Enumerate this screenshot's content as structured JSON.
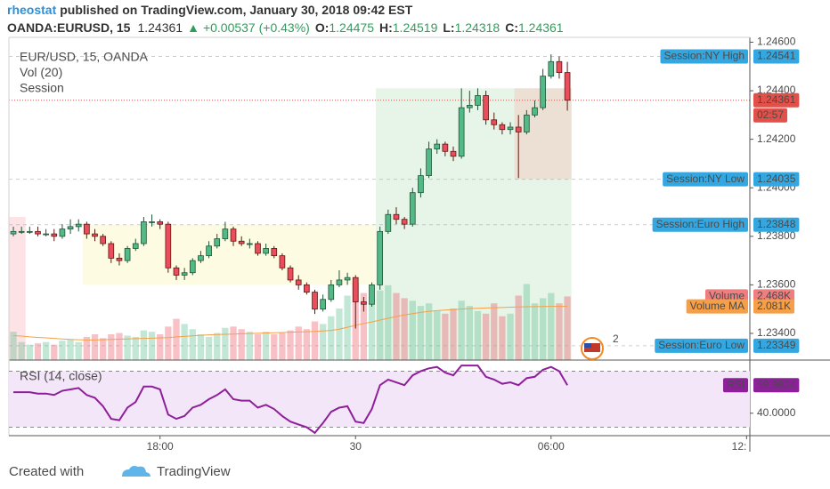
{
  "header": {
    "author": "rheostat",
    "byline": "published on TradingView.com, January 30, 2018 09:42 EST",
    "symbol": "OANDA:EURUSD, 15",
    "last": "1.24361",
    "change": "+0.00537 (+0.43%)",
    "ohlc": [
      {
        "label": "O:",
        "value": "1.24475"
      },
      {
        "label": "H:",
        "value": "1.24519"
      },
      {
        "label": "L:",
        "value": "1.24318"
      },
      {
        "label": "C:",
        "value": "1.24361"
      }
    ]
  },
  "footer": {
    "text": "Created with",
    "brand": "TradingView"
  },
  "chart_data": [
    {
      "type": "candlestick",
      "legend": [
        "EUR/USD, 15, OANDA",
        "Vol (20)",
        "Session"
      ],
      "up_color": "#53b987",
      "down_color": "#eb4d5c",
      "x": [
        0,
        1,
        2,
        3,
        4,
        5,
        6,
        7,
        8,
        9,
        10,
        11,
        12,
        13,
        14,
        15,
        16,
        17,
        18,
        19,
        20,
        21,
        22,
        23,
        24,
        25,
        26,
        27,
        28,
        29,
        30,
        31,
        32,
        33,
        34,
        35,
        36,
        37,
        38,
        39,
        40,
        41,
        42,
        43,
        44,
        45,
        46,
        47,
        48,
        49,
        50,
        51,
        52,
        53,
        54,
        55,
        56,
        57,
        58,
        59,
        60,
        61,
        62,
        63,
        64,
        65,
        66,
        67,
        68
      ],
      "open": [
        1.2381,
        1.2382,
        1.2382,
        1.2382,
        1.2381,
        1.2381,
        1.238,
        1.2383,
        1.2384,
        1.2385,
        1.2381,
        1.238,
        1.2377,
        1.2371,
        1.237,
        1.2375,
        1.2377,
        1.2386,
        1.2386,
        1.2385,
        1.2367,
        1.2364,
        1.2365,
        1.237,
        1.2372,
        1.2376,
        1.2379,
        1.2383,
        1.2378,
        1.2377,
        1.2377,
        1.2373,
        1.2375,
        1.2372,
        1.2367,
        1.2362,
        1.236,
        1.2357,
        1.235,
        1.2354,
        1.236,
        1.2362,
        1.2363,
        1.2353,
        1.2352,
        1.236,
        1.2382,
        1.2389,
        1.2387,
        1.2385,
        1.2398,
        1.2405,
        1.2416,
        1.2418,
        1.2415,
        1.2413,
        1.2433,
        1.2434,
        1.2438,
        1.2428,
        1.2426,
        1.2424,
        1.2425,
        1.2423,
        1.243,
        1.2433,
        1.2446,
        1.2452,
        1.24475
      ],
      "high": [
        1.2384,
        1.2384,
        1.2384,
        1.2384,
        1.2383,
        1.2383,
        1.2385,
        1.2387,
        1.2387,
        1.2386,
        1.2383,
        1.2381,
        1.2378,
        1.2373,
        1.2376,
        1.2379,
        1.2388,
        1.2389,
        1.2387,
        1.2386,
        1.2368,
        1.2367,
        1.2371,
        1.2374,
        1.2378,
        1.2381,
        1.2386,
        1.2384,
        1.238,
        1.2379,
        1.2378,
        1.2377,
        1.2376,
        1.2373,
        1.2368,
        1.2364,
        1.2361,
        1.2358,
        1.2356,
        1.2362,
        1.2366,
        1.2365,
        1.2364,
        1.2355,
        1.2361,
        1.2384,
        1.2391,
        1.2392,
        1.2388,
        1.24,
        1.2408,
        1.2419,
        1.242,
        1.2419,
        1.2417,
        1.2441,
        1.244,
        1.2441,
        1.244,
        1.2431,
        1.2427,
        1.2427,
        1.243,
        1.2432,
        1.2436,
        1.2449,
        1.2455,
        1.24541,
        1.24519
      ],
      "low": [
        1.238,
        1.2381,
        1.2381,
        1.238,
        1.238,
        1.2378,
        1.2379,
        1.2381,
        1.2382,
        1.2379,
        1.2378,
        1.2376,
        1.2369,
        1.2368,
        1.2369,
        1.2374,
        1.2376,
        1.2384,
        1.2383,
        1.2365,
        1.2362,
        1.2362,
        1.2364,
        1.2369,
        1.2371,
        1.2375,
        1.2378,
        1.2376,
        1.2376,
        1.2375,
        1.2372,
        1.2372,
        1.2371,
        1.2366,
        1.2361,
        1.2358,
        1.2356,
        1.2348,
        1.2349,
        1.2353,
        1.2359,
        1.236,
        1.2342,
        1.2349,
        1.2351,
        1.2358,
        1.2381,
        1.2385,
        1.2383,
        1.2384,
        1.2396,
        1.2404,
        1.2414,
        1.2413,
        1.2411,
        1.2412,
        1.2431,
        1.2432,
        1.2426,
        1.2424,
        1.2422,
        1.2422,
        1.2404,
        1.2422,
        1.2429,
        1.2432,
        1.2445,
        1.2445,
        1.24318
      ],
      "close": [
        1.2382,
        1.2382,
        1.2382,
        1.2381,
        1.2381,
        1.238,
        1.2383,
        1.2384,
        1.2385,
        1.2381,
        1.238,
        1.2377,
        1.2371,
        1.237,
        1.2375,
        1.2377,
        1.2386,
        1.2386,
        1.2385,
        1.2367,
        1.2364,
        1.2365,
        1.237,
        1.2372,
        1.2376,
        1.2379,
        1.2383,
        1.2378,
        1.2377,
        1.2377,
        1.2373,
        1.2375,
        1.2372,
        1.2367,
        1.2362,
        1.236,
        1.2357,
        1.235,
        1.2354,
        1.236,
        1.2362,
        1.2363,
        1.2353,
        1.2352,
        1.236,
        1.2382,
        1.2389,
        1.2387,
        1.2385,
        1.2398,
        1.2405,
        1.2416,
        1.2418,
        1.2415,
        1.2413,
        1.2433,
        1.2434,
        1.2438,
        1.2428,
        1.2426,
        1.2424,
        1.2425,
        1.2423,
        1.243,
        1.2433,
        1.2446,
        1.2452,
        1.24475,
        1.24361
      ],
      "xlim": [
        -0.55,
        90.4
      ],
      "xticks": [
        {
          "value": 18,
          "label": "18:00"
        },
        {
          "value": 42,
          "label": "30"
        },
        {
          "value": 66,
          "label": "06:00"
        },
        {
          "value": 90,
          "label": "12:"
        }
      ],
      "ylim": [
        1.2329,
        1.2462
      ],
      "yticks": [
        {
          "value": 1.234,
          "label": "1.23400"
        },
        {
          "value": 1.236,
          "label": "1.23600"
        },
        {
          "value": 1.238,
          "label": "1.23800"
        },
        {
          "value": 1.24,
          "label": "1.24000"
        },
        {
          "value": 1.242,
          "label": "1.24200"
        },
        {
          "value": 1.244,
          "label": "1.24400"
        },
        {
          "value": 1.246,
          "label": "1.24600"
        }
      ],
      "grid": false,
      "last_price": {
        "value": 1.24361,
        "countdown": "02:57",
        "color": "#e2504a"
      },
      "sessions": [
        {
          "name": "Session:NY High",
          "value": 1.24541
        },
        {
          "name": "Session:NY Low",
          "value": 1.24035
        },
        {
          "name": "Session:Euro High",
          "value": 1.23848
        },
        {
          "name": "Session:Euro Low",
          "value": 1.23349
        }
      ],
      "session_color": "#34a7e0",
      "session_ranges": [
        {
          "from": 0,
          "to": 1,
          "low": 1.2329,
          "high": 1.2388,
          "color": "#fde3e6"
        },
        {
          "from": 9,
          "to": 45,
          "low": 1.236,
          "high": 1.23848,
          "color": "#fdfbe1"
        },
        {
          "from": 45,
          "to": 68,
          "low": 1.2329,
          "high": 1.2441,
          "color": "#e7f4e8"
        },
        {
          "from": 62,
          "to": 68,
          "low": 1.24035,
          "high": 1.2441,
          "color": "#ecdfd3"
        }
      ],
      "event_badge": "2",
      "volume": {
        "ylim": [
          0,
          5000
        ],
        "series": [
          {
            "name": "Volume",
            "color": "#f17e7e",
            "values": [
              1100,
              700,
              600,
              650,
              700,
              600,
              750,
              800,
              700,
              900,
              1000,
              850,
              1000,
              1050,
              950,
              900,
              1150,
              1100,
              1000,
              1300,
              1600,
              1400,
              1200,
              1000,
              900,
              1050,
              1250,
              1300,
              1200,
              1100,
              1000,
              1100,
              1000,
              1050,
              1150,
              1300,
              1200,
              1500,
              1400,
              1700,
              2000,
              2500,
              3000,
              2600,
              2200,
              2700,
              2900,
              2600,
              2400,
              2300,
              2100,
              2200,
              1900,
              1800,
              2000,
              2300,
              2100,
              1900,
              1800,
              2200,
              1700,
              1800,
              2500,
              2950,
              2200,
              2400,
              2600,
              2200,
              2468
            ],
            "value_labels": [
              null,
              null,
              null,
              null,
              null,
              null,
              null,
              null,
              null,
              null,
              null,
              null,
              null,
              null,
              null,
              null,
              null,
              null,
              null,
              null,
              null,
              null,
              null,
              null,
              null,
              null,
              null,
              null,
              null,
              null,
              null,
              null,
              null,
              null,
              null,
              null,
              null,
              null,
              null,
              null,
              null,
              null,
              null,
              null,
              null,
              null,
              null,
              null,
              null,
              null,
              null,
              null,
              null,
              null,
              null,
              null,
              null,
              null,
              null,
              null,
              null,
              null,
              null,
              null,
              null,
              null,
              null,
              null,
              "2.468K"
            ]
          },
          {
            "name": "Volume MA",
            "color": "#f5a048",
            "values": [
              950,
              930,
              900,
              880,
              860,
              840,
              820,
              800,
              790,
              780,
              780,
              790,
              800,
              810,
              820,
              830,
              840,
              850,
              860,
              870,
              900,
              920,
              940,
              960,
              980,
              990,
              1000,
              1010,
              1020,
              1030,
              1040,
              1050,
              1060,
              1070,
              1080,
              1090,
              1100,
              1110,
              1130,
              1150,
              1200,
              1270,
              1350,
              1420,
              1480,
              1550,
              1620,
              1690,
              1750,
              1800,
              1850,
              1890,
              1920,
              1940,
              1960,
              1980,
              2000,
              2010,
              2020,
              2030,
              2040,
              2050,
              2060,
              2070,
              2075,
              2078,
              2080,
              2081,
              2081
            ],
            "value_labels": [
              null,
              null,
              null,
              null,
              null,
              null,
              null,
              null,
              null,
              null,
              null,
              null,
              null,
              null,
              null,
              null,
              null,
              null,
              null,
              null,
              null,
              null,
              null,
              null,
              null,
              null,
              null,
              null,
              null,
              null,
              null,
              null,
              null,
              null,
              null,
              null,
              null,
              null,
              null,
              null,
              null,
              null,
              null,
              null,
              null,
              null,
              null,
              null,
              null,
              null,
              null,
              null,
              null,
              null,
              null,
              null,
              null,
              null,
              null,
              null,
              null,
              null,
              null,
              null,
              null,
              null,
              null,
              null,
              "2.081K"
            ]
          }
        ]
      }
    },
    {
      "type": "line",
      "title": "RSI (14, close)",
      "ylim": [
        24,
        76
      ],
      "yticks": [
        {
          "value": 40,
          "label": "40.0000"
        }
      ],
      "levels": [
        30,
        70
      ],
      "band_color": "#f3e6f8",
      "series": [
        {
          "name": "RSI",
          "color": "#8e1f9a",
          "values": [
            55,
            55,
            55,
            54,
            54,
            53,
            56,
            57,
            58,
            53,
            51,
            45,
            36,
            35,
            44,
            48,
            59,
            59,
            57,
            39,
            36,
            38,
            44,
            46,
            50,
            53,
            57,
            50,
            49,
            49,
            44,
            46,
            43,
            38,
            34,
            32,
            30,
            26,
            33,
            41,
            44,
            45,
            34,
            33,
            43,
            60,
            64,
            62,
            60,
            67,
            70,
            72,
            73,
            69,
            67,
            74,
            74,
            74,
            66,
            64,
            61,
            62,
            60,
            65,
            66,
            71,
            73,
            70,
            59.9824
          ]
        }
      ]
    }
  ]
}
